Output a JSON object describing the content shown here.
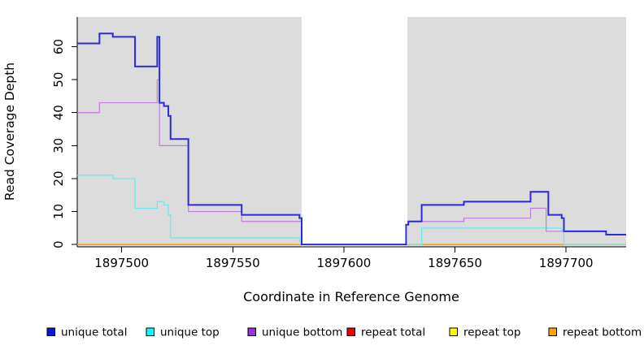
{
  "chart_data": {
    "type": "line",
    "subtype": "step",
    "title": "",
    "xlabel": "Coordinate in Reference Genome",
    "ylabel": "Read Coverage Depth",
    "xlim": [
      1897480,
      1897727
    ],
    "ylim": [
      -0.7,
      69
    ],
    "x_ticks": [
      1897500,
      1897550,
      1897600,
      1897650,
      1897700
    ],
    "y_ticks": [
      0,
      10,
      20,
      30,
      40,
      50,
      60
    ],
    "grid": false,
    "background": "#FFFFFF",
    "panel_shade_color": "#DCDCDC",
    "shaded_regions": [
      {
        "x0": 1897480,
        "x1": 1897581
      },
      {
        "x0": 1897628.5,
        "x1": 1897727
      }
    ],
    "gap_region": {
      "x0": 1897581,
      "x1": 1897628.5
    },
    "legend_position": "bottom",
    "series": [
      {
        "name": "repeat total",
        "color": "#EE0000",
        "width": 1.2,
        "steps": [
          [
            1897480,
            0
          ]
        ]
      },
      {
        "name": "repeat top",
        "color": "#FFFF00",
        "width": 1.2,
        "steps": [
          [
            1897480,
            0
          ]
        ]
      },
      {
        "name": "repeat bottom",
        "color": "#FFA500",
        "width": 1.5,
        "steps": [
          [
            1897480,
            0
          ]
        ]
      },
      {
        "name": "unique top",
        "color": "#6FE7EE",
        "width": 1.2,
        "steps": [
          [
            1897480,
            21
          ],
          [
            1897496,
            20
          ],
          [
            1897506,
            11
          ],
          [
            1897516,
            13
          ],
          [
            1897519,
            12
          ],
          [
            1897521,
            9
          ],
          [
            1897522,
            2
          ],
          [
            1897580,
            1
          ],
          [
            1897581,
            0
          ],
          [
            1897635,
            5
          ],
          [
            1897698,
            4
          ],
          [
            1897699,
            0
          ]
        ]
      },
      {
        "name": "unique bottom",
        "color": "#BD7FDF",
        "width": 1.2,
        "steps": [
          [
            1897480,
            40
          ],
          [
            1897490,
            43
          ],
          [
            1897516,
            50
          ],
          [
            1897517,
            30
          ],
          [
            1897530,
            10
          ],
          [
            1897554,
            7
          ],
          [
            1897581,
            0
          ],
          [
            1897628,
            6
          ],
          [
            1897629,
            7
          ],
          [
            1897654,
            8
          ],
          [
            1897684,
            11
          ],
          [
            1897691,
            4
          ],
          [
            1897718,
            3
          ]
        ]
      },
      {
        "name": "unique total",
        "color": "#2B2BD9",
        "width": 2,
        "steps": [
          [
            1897480,
            61
          ],
          [
            1897490,
            64
          ],
          [
            1897496,
            63
          ],
          [
            1897506,
            54
          ],
          [
            1897516,
            63
          ],
          [
            1897517,
            43
          ],
          [
            1897519,
            42
          ],
          [
            1897521,
            39
          ],
          [
            1897522,
            32
          ],
          [
            1897530,
            12
          ],
          [
            1897554,
            9
          ],
          [
            1897580,
            8
          ],
          [
            1897581,
            0
          ],
          [
            1897628,
            6
          ],
          [
            1897629,
            7
          ],
          [
            1897635,
            12
          ],
          [
            1897654,
            13
          ],
          [
            1897684,
            16
          ],
          [
            1897692,
            9
          ],
          [
            1897698,
            8
          ],
          [
            1897699,
            4
          ],
          [
            1897718,
            3
          ]
        ]
      }
    ],
    "legend": [
      {
        "label": "unique total",
        "color": "#1111E0"
      },
      {
        "label": "unique top",
        "color": "#00FFFF"
      },
      {
        "label": "unique bottom",
        "color": "#9A30E0"
      },
      {
        "label": "repeat total",
        "color": "#EE0000"
      },
      {
        "label": "repeat top",
        "color": "#FFFF00"
      },
      {
        "label": "repeat bottom",
        "color": "#FFA500"
      }
    ]
  }
}
